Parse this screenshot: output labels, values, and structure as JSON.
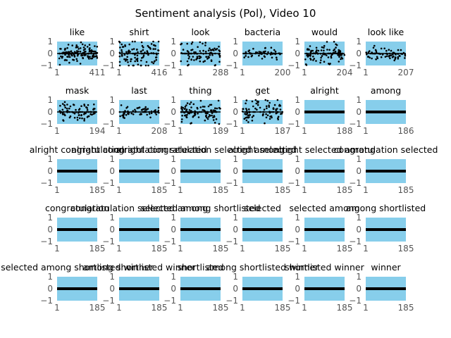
{
  "chart_data": {
    "type": "scatter",
    "title": "Sentiment analysis (Pol), Video 10",
    "panel_background": "#87ceeb",
    "point_color": "#000000",
    "ylim": [
      -1,
      1
    ],
    "yticks": [
      "1",
      "0",
      "−1"
    ],
    "panels": [
      {
        "title": "like",
        "xmax": 411,
        "kind": "scatter",
        "n": 140,
        "spread": 0.35,
        "seed": 11
      },
      {
        "title": "shirt",
        "xmax": 416,
        "kind": "scatter",
        "n": 110,
        "spread": 0.55,
        "seed": 12
      },
      {
        "title": "look",
        "xmax": 288,
        "kind": "scatter",
        "n": 95,
        "spread": 0.45,
        "seed": 13
      },
      {
        "title": "bacteria",
        "xmax": 200,
        "kind": "scatter",
        "n": 60,
        "spread": 0.22,
        "seed": 14
      },
      {
        "title": "would",
        "xmax": 204,
        "kind": "scatter",
        "n": 110,
        "spread": 0.4,
        "seed": 15
      },
      {
        "title": "look like",
        "xmax": 207,
        "kind": "scatter",
        "n": 70,
        "spread": 0.3,
        "seed": 16
      },
      {
        "title": "mask",
        "xmax": 194,
        "kind": "scatter",
        "n": 90,
        "spread": 0.4,
        "seed": 17
      },
      {
        "title": "last",
        "xmax": 208,
        "kind": "scatter",
        "n": 70,
        "spread": 0.25,
        "seed": 18
      },
      {
        "title": "thing",
        "xmax": 189,
        "kind": "scatter",
        "n": 110,
        "spread": 0.45,
        "seed": 19
      },
      {
        "title": "get",
        "xmax": 187,
        "kind": "scatter",
        "n": 95,
        "spread": 0.45,
        "seed": 20
      },
      {
        "title": "alright",
        "xmax": 188,
        "kind": "flat"
      },
      {
        "title": "among",
        "xmax": 186,
        "kind": "flat"
      },
      {
        "title": "alright congratulation",
        "xmax": 185,
        "kind": "flat"
      },
      {
        "title": "alright congratulation selected",
        "xmax": 185,
        "kind": "flat"
      },
      {
        "title": "alright congratulation selected among",
        "xmax": 185,
        "kind": "flat"
      },
      {
        "title": "alright selected",
        "xmax": 185,
        "kind": "flat"
      },
      {
        "title": "alright selected among",
        "xmax": 185,
        "kind": "flat"
      },
      {
        "title": "congratulation selected",
        "xmax": 185,
        "kind": "flat"
      },
      {
        "title": "congratulation",
        "xmax": 185,
        "kind": "flat"
      },
      {
        "title": "congratulation selected among",
        "xmax": 185,
        "kind": "flat"
      },
      {
        "title": "selected among shortlisted",
        "xmax": 185,
        "kind": "flat"
      },
      {
        "title": "selected",
        "xmax": 185,
        "kind": "flat"
      },
      {
        "title": "selected among",
        "xmax": 185,
        "kind": "flat"
      },
      {
        "title": "among shortlisted",
        "xmax": 185,
        "kind": "flat"
      },
      {
        "title": "selected among shortlisted winner",
        "xmax": 185,
        "kind": "flat"
      },
      {
        "title": "among shortlisted winner",
        "xmax": 185,
        "kind": "flat"
      },
      {
        "title": "shortlisted",
        "xmax": 185,
        "kind": "flat"
      },
      {
        "title": "among shortlisted winner",
        "xmax": 185,
        "kind": "flat"
      },
      {
        "title": "shortlisted winner",
        "xmax": 185,
        "kind": "flat"
      },
      {
        "title": "winner",
        "xmax": 185,
        "kind": "flat"
      }
    ]
  }
}
